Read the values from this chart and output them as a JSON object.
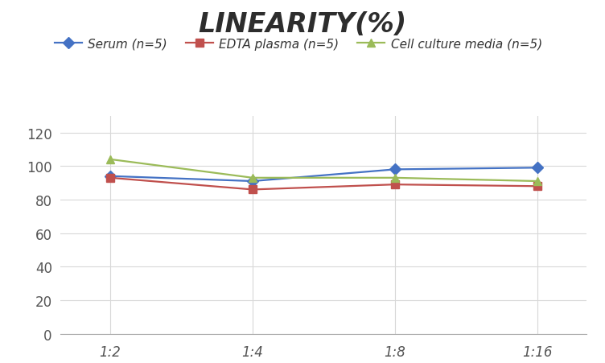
{
  "title": "LINEARITY(%)",
  "x_labels": [
    "1:2",
    "1:4",
    "1:8",
    "1:16"
  ],
  "x_positions": [
    0,
    1,
    2,
    3
  ],
  "series": [
    {
      "label": "Serum (n=5)",
      "values": [
        94,
        91,
        98,
        99
      ],
      "color": "#4472C4",
      "marker": "D",
      "marker_color": "#4472C4"
    },
    {
      "label": "EDTA plasma (n=5)",
      "values": [
        93,
        86,
        89,
        88
      ],
      "color": "#C0504D",
      "marker": "s",
      "marker_color": "#C0504D"
    },
    {
      "label": "Cell culture media (n=5)",
      "values": [
        104,
        93,
        93,
        91
      ],
      "color": "#9BBB59",
      "marker": "^",
      "marker_color": "#9BBB59"
    }
  ],
  "ylim": [
    0,
    130
  ],
  "yticks": [
    0,
    20,
    40,
    60,
    80,
    100,
    120
  ],
  "background_color": "#ffffff",
  "grid_color": "#d8d8d8",
  "title_fontsize": 24,
  "legend_fontsize": 11,
  "tick_fontsize": 12
}
